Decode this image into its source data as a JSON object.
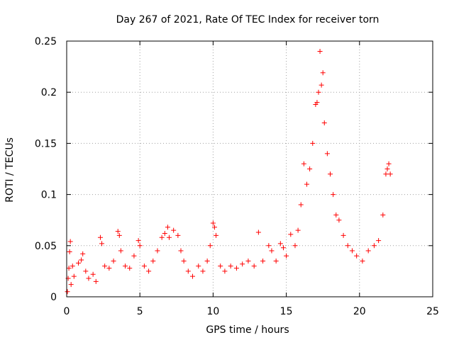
{
  "chart_data": {
    "type": "scatter",
    "title": "Day 267 of 2021, Rate Of TEC Index for receiver torn",
    "xlabel": "GPS time / hours",
    "ylabel": "ROTI / TECUs",
    "xlim": [
      0,
      25
    ],
    "ylim": [
      0,
      0.25
    ],
    "xticks": [
      "0",
      "5",
      "10",
      "15",
      "20",
      "25"
    ],
    "yticks": [
      "0",
      "0.05",
      "0.1",
      "0.15",
      "0.2",
      "0.25"
    ],
    "grid": true,
    "marker": "+",
    "color": "#ff0000",
    "series": [
      {
        "points": [
          [
            0.05,
            0.005
          ],
          [
            0.1,
            0.018
          ],
          [
            0.15,
            0.028
          ],
          [
            0.2,
            0.044
          ],
          [
            0.25,
            0.054
          ],
          [
            0.3,
            0.012
          ],
          [
            0.4,
            0.03
          ],
          [
            0.5,
            0.02
          ],
          [
            0.8,
            0.033
          ],
          [
            1.0,
            0.036
          ],
          [
            1.1,
            0.042
          ],
          [
            1.3,
            0.025
          ],
          [
            1.5,
            0.018
          ],
          [
            1.8,
            0.022
          ],
          [
            2.0,
            0.015
          ],
          [
            2.3,
            0.058
          ],
          [
            2.4,
            0.052
          ],
          [
            2.6,
            0.03
          ],
          [
            2.9,
            0.028
          ],
          [
            3.2,
            0.035
          ],
          [
            3.5,
            0.064
          ],
          [
            3.6,
            0.06
          ],
          [
            3.7,
            0.045
          ],
          [
            4.0,
            0.03
          ],
          [
            4.3,
            0.028
          ],
          [
            4.6,
            0.04
          ],
          [
            4.9,
            0.055
          ],
          [
            5.0,
            0.05
          ],
          [
            5.3,
            0.03
          ],
          [
            5.6,
            0.025
          ],
          [
            5.9,
            0.035
          ],
          [
            6.2,
            0.045
          ],
          [
            6.5,
            0.058
          ],
          [
            6.7,
            0.062
          ],
          [
            6.9,
            0.068
          ],
          [
            7.0,
            0.058
          ],
          [
            7.3,
            0.065
          ],
          [
            7.6,
            0.06
          ],
          [
            7.8,
            0.045
          ],
          [
            8.0,
            0.035
          ],
          [
            8.3,
            0.025
          ],
          [
            8.6,
            0.02
          ],
          [
            9.0,
            0.03
          ],
          [
            9.3,
            0.025
          ],
          [
            9.6,
            0.035
          ],
          [
            9.8,
            0.05
          ],
          [
            10.0,
            0.072
          ],
          [
            10.1,
            0.068
          ],
          [
            10.2,
            0.06
          ],
          [
            10.5,
            0.03
          ],
          [
            10.8,
            0.025
          ],
          [
            11.2,
            0.03
          ],
          [
            11.6,
            0.028
          ],
          [
            12.0,
            0.032
          ],
          [
            12.4,
            0.035
          ],
          [
            12.8,
            0.03
          ],
          [
            13.1,
            0.063
          ],
          [
            13.4,
            0.035
          ],
          [
            13.8,
            0.05
          ],
          [
            14.0,
            0.045
          ],
          [
            14.3,
            0.035
          ],
          [
            14.6,
            0.052
          ],
          [
            14.8,
            0.048
          ],
          [
            15.0,
            0.04
          ],
          [
            15.3,
            0.061
          ],
          [
            15.6,
            0.05
          ],
          [
            15.8,
            0.065
          ],
          [
            16.0,
            0.09
          ],
          [
            16.2,
            0.13
          ],
          [
            16.4,
            0.11
          ],
          [
            16.6,
            0.125
          ],
          [
            16.8,
            0.15
          ],
          [
            17.0,
            0.188
          ],
          [
            17.1,
            0.19
          ],
          [
            17.2,
            0.2
          ],
          [
            17.3,
            0.24
          ],
          [
            17.4,
            0.207
          ],
          [
            17.5,
            0.219
          ],
          [
            17.6,
            0.17
          ],
          [
            17.8,
            0.14
          ],
          [
            18.0,
            0.12
          ],
          [
            18.2,
            0.1
          ],
          [
            18.4,
            0.08
          ],
          [
            18.6,
            0.075
          ],
          [
            18.9,
            0.06
          ],
          [
            19.2,
            0.05
          ],
          [
            19.5,
            0.045
          ],
          [
            19.8,
            0.04
          ],
          [
            20.2,
            0.035
          ],
          [
            20.6,
            0.045
          ],
          [
            21.0,
            0.05
          ],
          [
            21.3,
            0.055
          ],
          [
            21.6,
            0.08
          ],
          [
            21.8,
            0.12
          ],
          [
            21.9,
            0.125
          ],
          [
            22.0,
            0.13
          ],
          [
            22.1,
            0.12
          ]
        ]
      }
    ]
  }
}
